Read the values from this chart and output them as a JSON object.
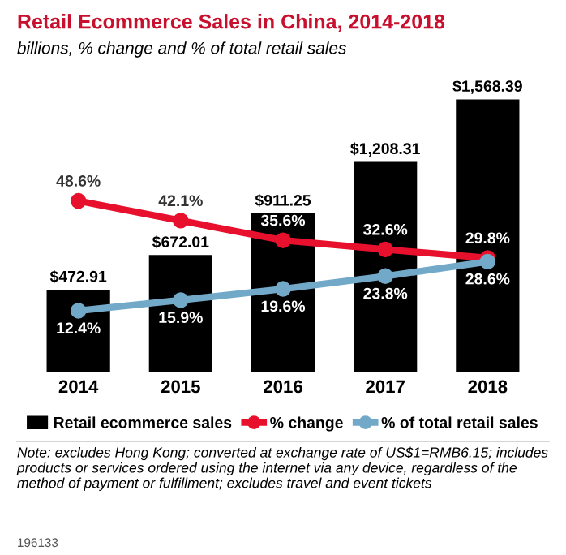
{
  "chart_data": {
    "type": "bar",
    "title": "Retail Ecommerce Sales in China, 2014-2018",
    "subtitle": "billions, % change and % of total retail sales",
    "categories": [
      "2014",
      "2015",
      "2016",
      "2017",
      "2018"
    ],
    "series": [
      {
        "name": "Retail ecommerce sales",
        "color": "#000000",
        "values": [
          472.91,
          672.01,
          911.25,
          1208.31,
          1568.39
        ],
        "value_labels": [
          "$472.91",
          "$672.01",
          "$911.25",
          "$1,208.31",
          "$1,568.39"
        ]
      },
      {
        "name": "% change",
        "type": "line",
        "axis": "y2",
        "color": "#e8112d",
        "values": [
          48.6,
          42.1,
          35.6,
          32.6,
          29.8
        ],
        "value_labels": [
          "48.6%",
          "42.1%",
          "35.6%",
          "32.6%",
          "29.8%"
        ]
      },
      {
        "name": "% of total retail sales",
        "type": "line",
        "axis": "y2",
        "color": "#72a9c9",
        "values": [
          12.4,
          15.9,
          19.6,
          23.8,
          28.6
        ],
        "value_labels": [
          "12.4%",
          "15.9%",
          "19.6%",
          "23.8%",
          "28.6%"
        ]
      }
    ],
    "marker": "circle",
    "legend": "bottom",
    "grid": false,
    "annotations": [
      "Note: excludes Hong Kong; converted at exchange rate of US$1=RMB6.15; includes products or services ordered using the internet via any device, regardless of the method of payment or fulfillment; excludes travel and event tickets",
      "196133"
    ]
  }
}
